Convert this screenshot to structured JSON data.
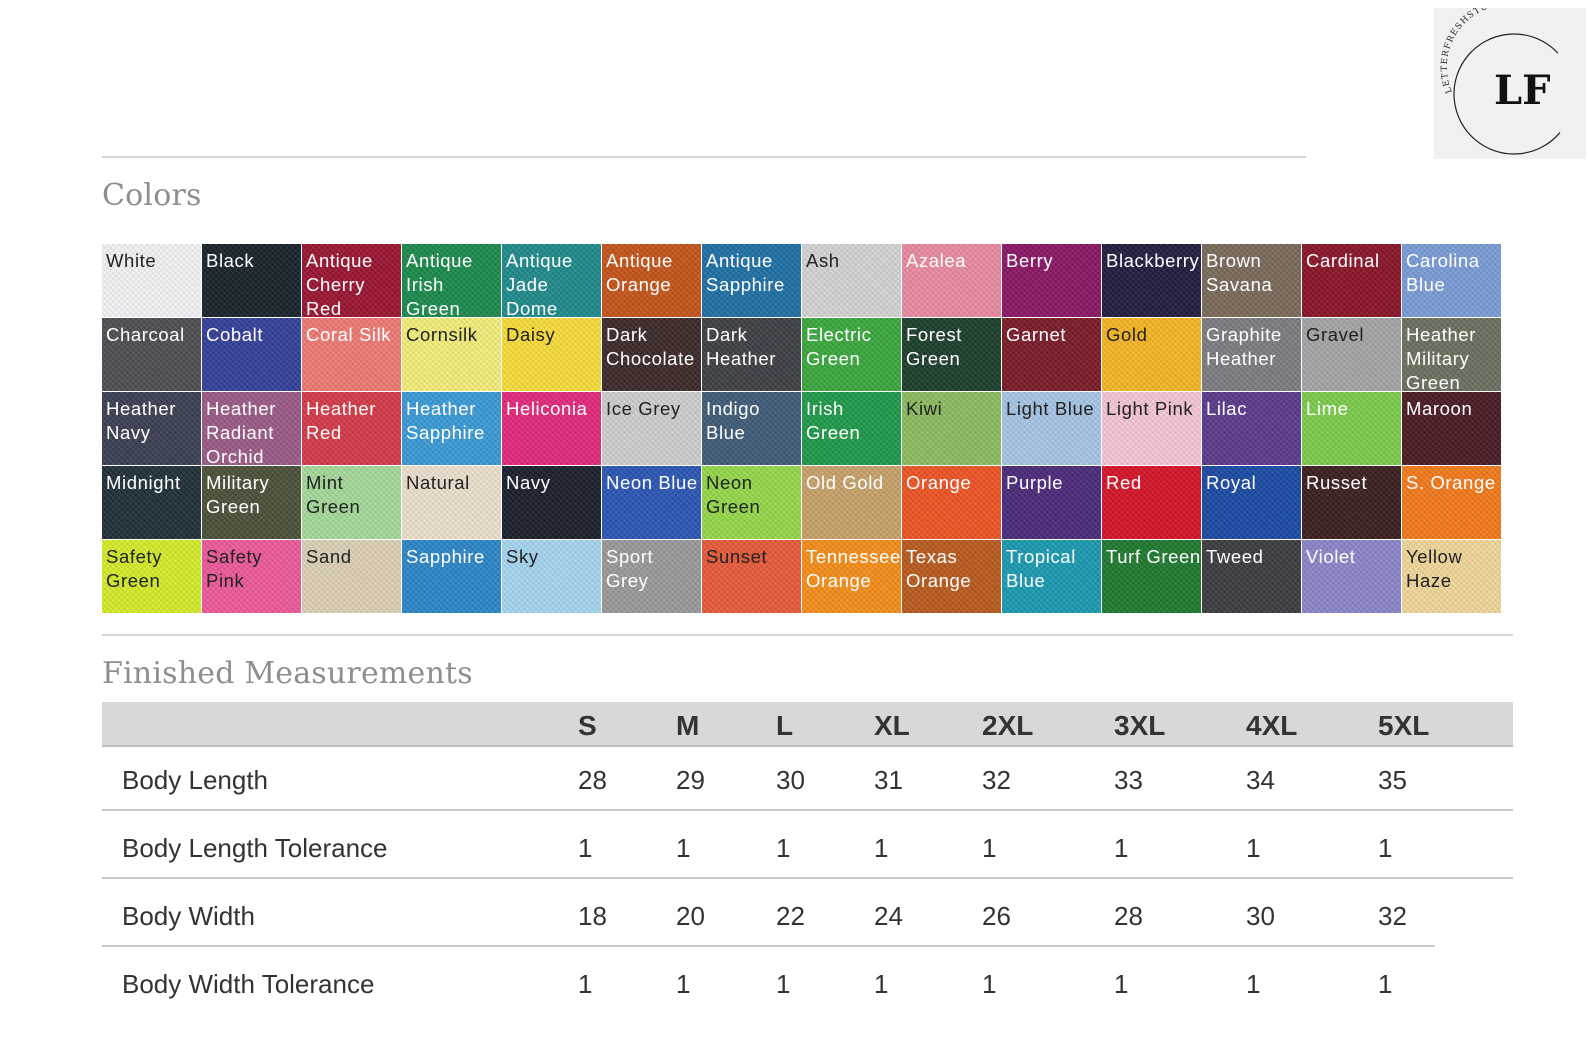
{
  "logo": {
    "monogram": "LF",
    "arc_text": "LETTERFRESHSTUDIO"
  },
  "colors_title": "Colors",
  "swatches": [
    {
      "label": "White",
      "bg": "#f4f4f7",
      "fg": "#222"
    },
    {
      "label": "Black",
      "bg": "#17222a",
      "fg": "#fff"
    },
    {
      "label": "Antique Cherry Red",
      "bg": "#9a1530",
      "fg": "#fff"
    },
    {
      "label": "Antique Irish Green",
      "bg": "#1b8a4c",
      "fg": "#fff"
    },
    {
      "label": "Antique Jade Dome",
      "bg": "#1f8a8a",
      "fg": "#fff"
    },
    {
      "label": "Antique Orange",
      "bg": "#c5541a",
      "fg": "#fff"
    },
    {
      "label": "Antique Sapphire",
      "bg": "#1e6fa6",
      "fg": "#fff"
    },
    {
      "label": "Ash",
      "bg": "#d4d4d4",
      "fg": "#222"
    },
    {
      "label": "Azalea",
      "bg": "#ea8aa0",
      "fg": "#fff"
    },
    {
      "label": "Berry",
      "bg": "#8a1664",
      "fg": "#fff"
    },
    {
      "label": "Blackberry",
      "bg": "#221b3e",
      "fg": "#fff"
    },
    {
      "label": "Brown Savana",
      "bg": "#7a6a5a",
      "fg": "#fff"
    },
    {
      "label": "Cardinal",
      "bg": "#8a1428",
      "fg": "#fff"
    },
    {
      "label": "Carolina Blue",
      "bg": "#7a9cd6",
      "fg": "#fff"
    },
    {
      "label": "Charcoal",
      "bg": "#4d4d52",
      "fg": "#fff"
    },
    {
      "label": "Cobalt",
      "bg": "#33409a",
      "fg": "#fff"
    },
    {
      "label": "Coral Silk",
      "bg": "#ee7a74",
      "fg": "#fff"
    },
    {
      "label": "Cornsilk",
      "bg": "#f4ef7a",
      "fg": "#222"
    },
    {
      "label": "Daisy",
      "bg": "#f8dd3a",
      "fg": "#222"
    },
    {
      "label": "Dark Chocolate",
      "bg": "#3a2a28",
      "fg": "#fff"
    },
    {
      "label": "Dark Heather",
      "bg": "#3d3f46",
      "fg": "#fff"
    },
    {
      "label": "Electric Green",
      "bg": "#3aa83e",
      "fg": "#fff"
    },
    {
      "label": "Forest Green",
      "bg": "#1c3d2a",
      "fg": "#fff"
    },
    {
      "label": "Garnet",
      "bg": "#7a1b28",
      "fg": "#fff"
    },
    {
      "label": "Gold",
      "bg": "#f6b624",
      "fg": "#222"
    },
    {
      "label": "Graphite Heather",
      "bg": "#7d7c80",
      "fg": "#fff"
    },
    {
      "label": "Gravel",
      "bg": "#a4a5a7",
      "fg": "#222"
    },
    {
      "label": "Heather Military Green",
      "bg": "#6a705e",
      "fg": "#fff"
    },
    {
      "label": "Heather Navy",
      "bg": "#3a3f52",
      "fg": "#fff"
    },
    {
      "label": "Heather Radiant Orchid",
      "bg": "#9a5a86",
      "fg": "#fff"
    },
    {
      "label": "Heather Red",
      "bg": "#d43a48",
      "fg": "#fff"
    },
    {
      "label": "Heather Sapphire",
      "bg": "#3a9ad6",
      "fg": "#fff"
    },
    {
      "label": "Heliconia",
      "bg": "#e4287c",
      "fg": "#fff"
    },
    {
      "label": "Ice Grey",
      "bg": "#cfcfcf",
      "fg": "#222"
    },
    {
      "label": "Indigo Blue",
      "bg": "#3f5b78",
      "fg": "#fff"
    },
    {
      "label": "Irish Green",
      "bg": "#1f9a4a",
      "fg": "#fff"
    },
    {
      "label": "Kiwi",
      "bg": "#8ebc60",
      "fg": "#222"
    },
    {
      "label": "Light Blue",
      "bg": "#a6c6e6",
      "fg": "#222"
    },
    {
      "label": "Light Pink",
      "bg": "#f6c6d6",
      "fg": "#222"
    },
    {
      "label": "Lilac",
      "bg": "#5a3a8a",
      "fg": "#fff"
    },
    {
      "label": "Lime",
      "bg": "#7ccc4a",
      "fg": "#fff"
    },
    {
      "label": "Maroon",
      "bg": "#4a1a22",
      "fg": "#fff"
    },
    {
      "label": "Midnight",
      "bg": "#1f3038",
      "fg": "#fff"
    },
    {
      "label": "Military Green",
      "bg": "#4a5038",
      "fg": "#fff"
    },
    {
      "label": "Mint Green",
      "bg": "#a6da9a",
      "fg": "#222"
    },
    {
      "label": "Natural",
      "bg": "#ede0ce",
      "fg": "#222"
    },
    {
      "label": "Navy",
      "bg": "#1a1e2c",
      "fg": "#fff"
    },
    {
      "label": "Neon Blue",
      "bg": "#2a56b4",
      "fg": "#fff"
    },
    {
      "label": "Neon Green",
      "bg": "#96d84a",
      "fg": "#222"
    },
    {
      "label": "Old Gold",
      "bg": "#c8a26a",
      "fg": "#fff"
    },
    {
      "label": "Orange",
      "bg": "#ee5424",
      "fg": "#fff"
    },
    {
      "label": "Purple",
      "bg": "#4a2a7a",
      "fg": "#fff"
    },
    {
      "label": "Red",
      "bg": "#d41428",
      "fg": "#fff"
    },
    {
      "label": "Royal",
      "bg": "#1a4aa4",
      "fg": "#fff"
    },
    {
      "label": "Russet",
      "bg": "#3a1e1e",
      "fg": "#fff"
    },
    {
      "label": "S. Orange",
      "bg": "#f47a1a",
      "fg": "#fff"
    },
    {
      "label": "Safety Green",
      "bg": "#d6ec2a",
      "fg": "#222"
    },
    {
      "label": "Safety Pink",
      "bg": "#ee5a9a",
      "fg": "#222"
    },
    {
      "label": "Sand",
      "bg": "#ddd0b6",
      "fg": "#222"
    },
    {
      "label": "Sapphire",
      "bg": "#2c86c8",
      "fg": "#fff"
    },
    {
      "label": "Sky",
      "bg": "#a6d6f2",
      "fg": "#222"
    },
    {
      "label": "Sport Grey",
      "bg": "#9a9a9c",
      "fg": "#fff"
    },
    {
      "label": "Sunset",
      "bg": "#e85a3a",
      "fg": "#222"
    },
    {
      "label": "Tennessee Orange",
      "bg": "#f68e1a",
      "fg": "#fff"
    },
    {
      "label": "Texas Orange",
      "bg": "#ba5a1e",
      "fg": "#fff"
    },
    {
      "label": "Tropical Blue",
      "bg": "#1a9ab0",
      "fg": "#fff"
    },
    {
      "label": "Turf Green",
      "bg": "#1e7a2e",
      "fg": "#fff"
    },
    {
      "label": "Tweed",
      "bg": "#3a3c40",
      "fg": "#fff"
    },
    {
      "label": "Violet",
      "bg": "#8a86ca",
      "fg": "#fff"
    },
    {
      "label": "Yellow Haze",
      "bg": "#f1d89a",
      "fg": "#222"
    }
  ],
  "measurements_title": "Finished Measurements",
  "sizes": [
    "S",
    "M",
    "L",
    "XL",
    "2XL",
    "3XL",
    "4XL",
    "5XL"
  ],
  "rows": [
    {
      "label": "Body Length",
      "values": [
        "28",
        "29",
        "30",
        "31",
        "32",
        "33",
        "34",
        "35"
      ]
    },
    {
      "label": "Body Length Tolerance",
      "values": [
        "1",
        "1",
        "1",
        "1",
        "1",
        "1",
        "1",
        "1"
      ]
    },
    {
      "label": "Body Width",
      "values": [
        "18",
        "20",
        "22",
        "24",
        "26",
        "28",
        "30",
        "32"
      ]
    },
    {
      "label": "Body Width Tolerance",
      "values": [
        "1",
        "1",
        "1",
        "1",
        "1",
        "1",
        "1",
        "1"
      ]
    }
  ]
}
